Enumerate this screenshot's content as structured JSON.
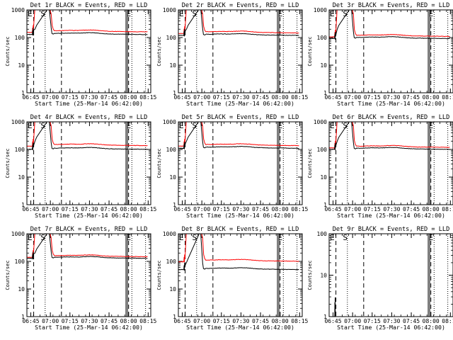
{
  "page": {
    "xlabel": "Start Time (25-Mar-14 06:42:00)",
    "ylabel": "Counts/sec",
    "x_ticks": [
      "06:45",
      "07:00",
      "07:15",
      "07:30",
      "07:45",
      "08:00",
      "08:15"
    ],
    "y_ticks": [
      "1",
      "10",
      "100",
      "1000"
    ],
    "marker_labels": [
      "E",
      "S",
      "E"
    ]
  },
  "chart_data": [
    {
      "type": "line",
      "title": "Det 1r BLACK = Events, RED = LLD",
      "yscale": "log",
      "ylim": [
        1,
        1000
      ],
      "series": [
        {
          "name": "BLACK = Events",
          "color": "#000000",
          "plateau": 140,
          "peak_pos": 200
        },
        {
          "name": "RED = LLD",
          "color": "#ff0000",
          "plateau": 175,
          "peak_pos": 1000
        }
      ]
    },
    {
      "type": "line",
      "title": "Det 2r BLACK = Events, RED = LLD",
      "yscale": "log",
      "ylim": [
        1,
        1000
      ],
      "series": [
        {
          "name": "BLACK = Events",
          "color": "#000000",
          "plateau": 130,
          "peak_pos": 200
        },
        {
          "name": "RED = LLD",
          "color": "#ff0000",
          "plateau": 160,
          "peak_pos": 1000
        }
      ]
    },
    {
      "type": "line",
      "title": "Det 3r BLACK = Events, RED = LLD",
      "yscale": "log",
      "ylim": [
        1,
        1000
      ],
      "series": [
        {
          "name": "BLACK = Events",
          "color": "#000000",
          "plateau": 100,
          "peak_pos": 200
        },
        {
          "name": "RED = LLD",
          "color": "#ff0000",
          "plateau": 120,
          "peak_pos": 1000
        }
      ]
    },
    {
      "type": "line",
      "title": "Det 4r BLACK = Events, RED = LLD",
      "yscale": "log",
      "ylim": [
        1,
        1000
      ],
      "series": [
        {
          "name": "BLACK = Events",
          "color": "#000000",
          "plateau": 110,
          "peak_pos": 200
        },
        {
          "name": "RED = LLD",
          "color": "#ff0000",
          "plateau": 150,
          "peak_pos": 1000
        }
      ]
    },
    {
      "type": "line",
      "title": "Det 5r BLACK = Events, RED = LLD",
      "yscale": "log",
      "ylim": [
        1,
        1000
      ],
      "series": [
        {
          "name": "BLACK = Events",
          "color": "#000000",
          "plateau": 120,
          "peak_pos": 200
        },
        {
          "name": "RED = LLD",
          "color": "#ff0000",
          "plateau": 150,
          "peak_pos": 1000
        }
      ]
    },
    {
      "type": "line",
      "title": "Det 6r BLACK = Events, RED = LLD",
      "yscale": "log",
      "ylim": [
        1,
        1000
      ],
      "series": [
        {
          "name": "BLACK = Events",
          "color": "#000000",
          "plateau": 110,
          "peak_pos": 200
        },
        {
          "name": "RED = LLD",
          "color": "#ff0000",
          "plateau": 130,
          "peak_pos": 1000
        }
      ]
    },
    {
      "type": "line",
      "title": "Det 7r BLACK = Events, RED = LLD",
      "yscale": "log",
      "ylim": [
        1,
        1000
      ],
      "series": [
        {
          "name": "BLACK = Events",
          "color": "#000000",
          "plateau": 140,
          "peak_pos": 200
        },
        {
          "name": "RED = LLD",
          "color": "#ff0000",
          "plateau": 160,
          "peak_pos": 1000
        }
      ]
    },
    {
      "type": "line",
      "title": "Det 8r BLACK = Events, RED = LLD",
      "yscale": "log",
      "ylim": [
        1,
        1000
      ],
      "series": [
        {
          "name": "BLACK = Events",
          "color": "#000000",
          "plateau": 55,
          "peak_pos": 90
        },
        {
          "name": "RED = LLD",
          "color": "#ff0000",
          "plateau": 110,
          "peak_pos": 1000
        }
      ]
    },
    {
      "type": "line",
      "title": "Det 9r BLACK = Events, RED = LLD",
      "yscale": "log",
      "ylim": [
        1,
        100
      ],
      "series": [
        {
          "name": "BLACK = Events",
          "color": "#000000",
          "plateau": null,
          "peak_pos": 3
        }
      ]
    }
  ]
}
